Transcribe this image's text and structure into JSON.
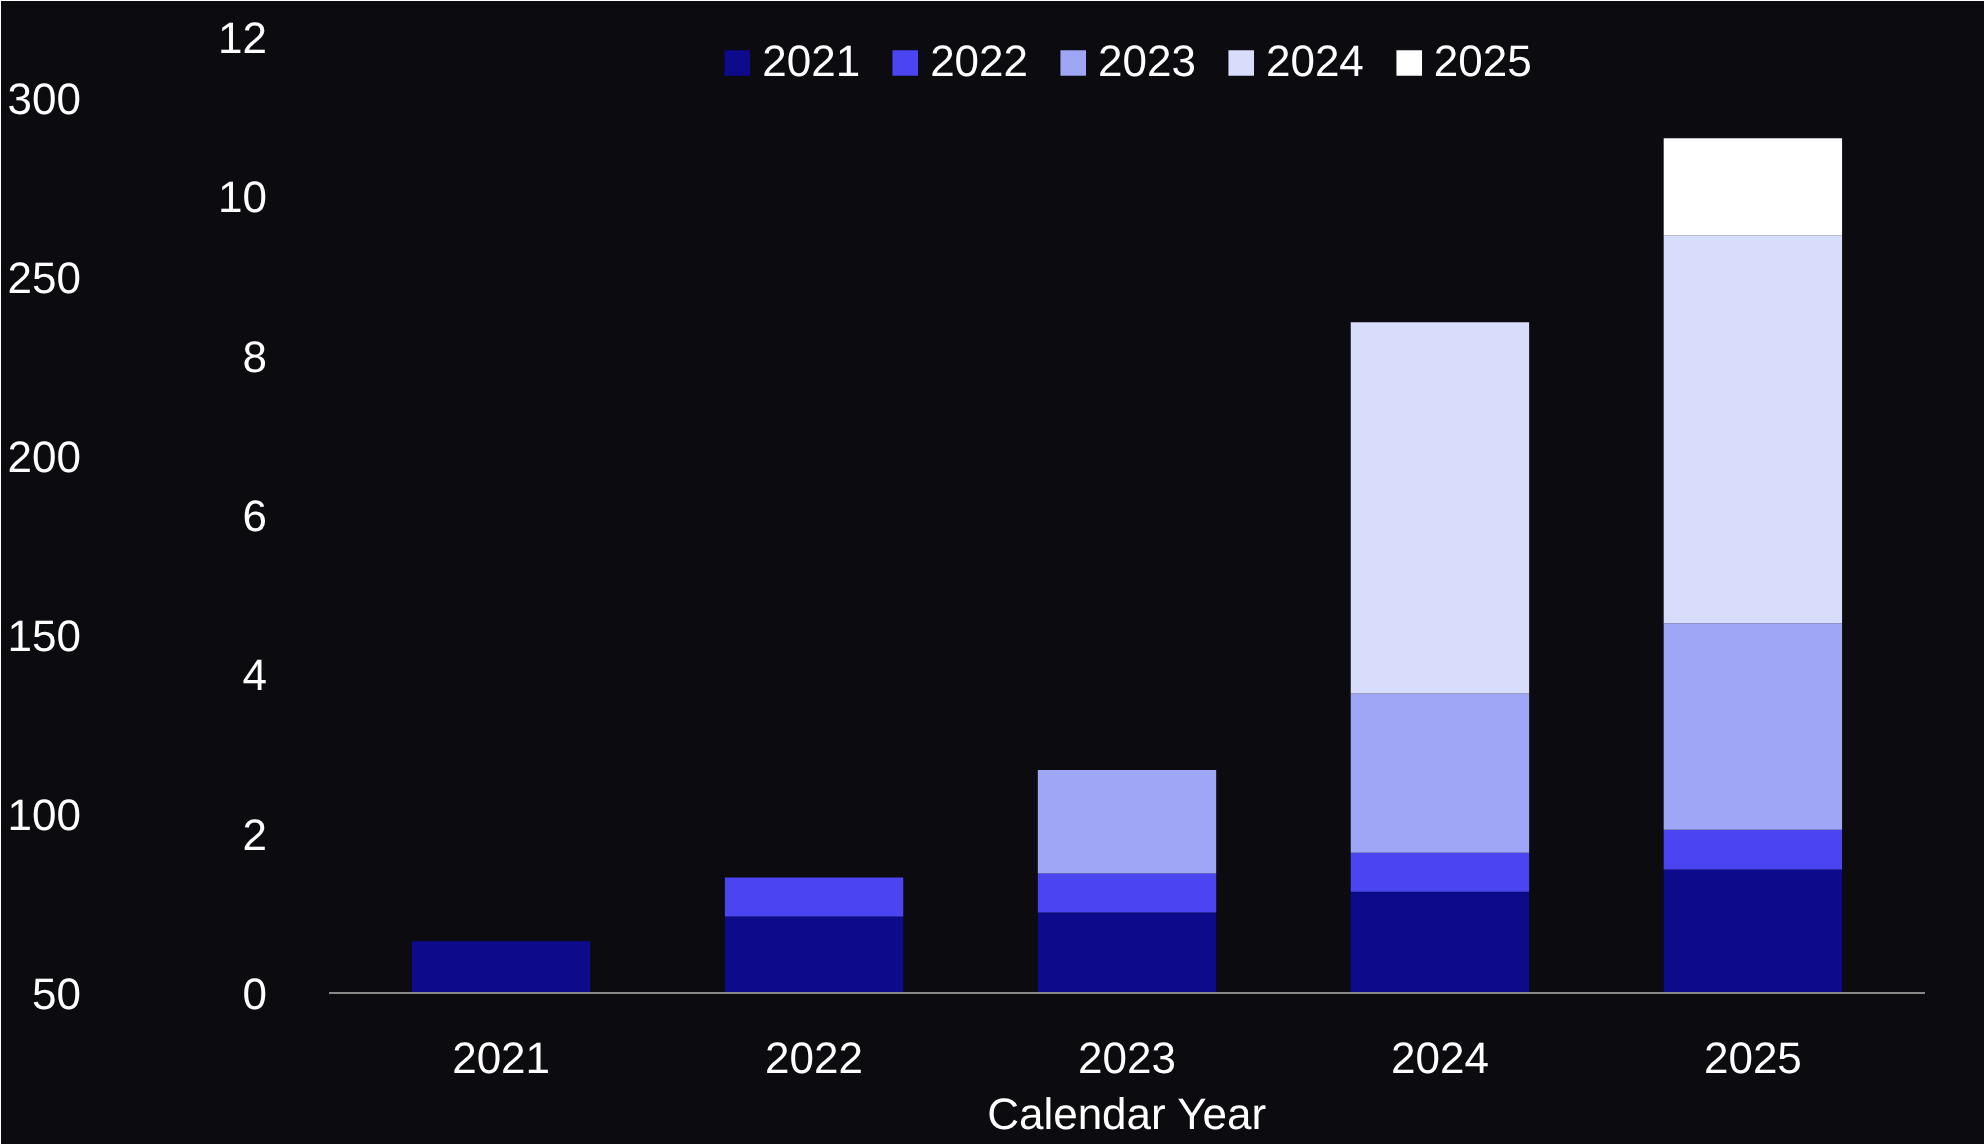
{
  "chart_data": {
    "type": "bar",
    "stacked": true,
    "xlabel": "Calendar Year",
    "categories": [
      "2021",
      "2022",
      "2023",
      "2024",
      "2025"
    ],
    "series": [
      {
        "name": "2021",
        "color": "#0d0a8c",
        "values": [
          0.65,
          0.96,
          1.01,
          1.27,
          1.55
        ]
      },
      {
        "name": "2022",
        "color": "#4a45f0",
        "values": [
          null,
          0.49,
          0.49,
          0.49,
          0.5
        ]
      },
      {
        "name": "2023",
        "color": "#9ea6f5",
        "values": [
          null,
          null,
          1.3,
          2.0,
          2.59
        ]
      },
      {
        "name": "2024",
        "color": "#d8ddfb",
        "values": [
          null,
          null,
          null,
          4.66,
          4.87
        ]
      },
      {
        "name": "2025",
        "color": "#ffffff",
        "values": [
          null,
          null,
          null,
          null,
          1.22
        ]
      }
    ],
    "ylim": [
      0,
      12
    ],
    "yticks": [
      0,
      2,
      4,
      6,
      8,
      10,
      12
    ],
    "y2lim": [
      50,
      317
    ],
    "y2ticks": [
      50,
      100,
      150,
      200,
      250,
      300
    ],
    "grid": false,
    "legend": "top"
  }
}
